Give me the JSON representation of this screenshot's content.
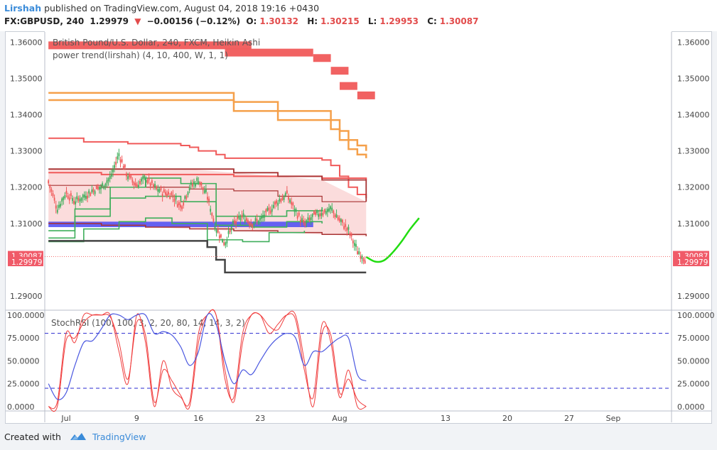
{
  "header": {
    "author": "Lirshah",
    "published_text": "published on TradingView.com, August 04, 2018 19:16 +0430",
    "symbol": "FX:GBPUSD, 240",
    "last": "1.29979",
    "change_arrow": "▼",
    "change": "−0.00156 (−0.12%)",
    "open_label": "O:",
    "open": "1.30132",
    "high_label": "H:",
    "high": "1.30215",
    "low_label": "L:",
    "low": "1.29953",
    "close_label": "C:",
    "close": "1.30087"
  },
  "footer": {
    "created_with": "Created with",
    "brand": "TradingView"
  },
  "colors": {
    "bull": "#3fae5b",
    "bear": "#f05a5a",
    "orange": "#f5a04a",
    "blue_band": "#4a4af5",
    "dark_line": "#444444",
    "dark_red": "#a83232",
    "stoch_blue": "#4a57e0",
    "stoch_red": "#f03c3c",
    "forecast": "#22dd11",
    "price_tag": "#f05a68",
    "dashed": "#2a2ad0"
  },
  "chart_data": [
    {
      "type": "line",
      "title": "British Pound/U.S. Dollar, 240, FXCM, Heikin Ashi",
      "subtitle": "power trend(lirshah) (4, 10, 400, W, 1, 1)",
      "y_ticks": [
        "1.36000",
        "1.35000",
        "1.34000",
        "1.33000",
        "1.32000",
        "1.31000",
        "1.29000"
      ],
      "ylim": [
        1.2865,
        1.3624
      ],
      "x_ticks": [
        {
          "label": "Jul",
          "day": 1
        },
        {
          "label": "9",
          "day": 9
        },
        {
          "label": "16",
          "day": 16
        },
        {
          "label": "23",
          "day": 23
        },
        {
          "label": "Aug",
          "day": 32
        },
        {
          "label": "13",
          "day": 44
        },
        {
          "label": "20",
          "day": 51
        },
        {
          "label": "27",
          "day": 58
        },
        {
          "label": "Sep",
          "day": 63
        }
      ],
      "price_tags": [
        {
          "label": "1.30087",
          "value": 1.30087
        },
        {
          "label": "1.29979",
          "value": 1.29979
        }
      ],
      "series": [
        {
          "role": "ha_close",
          "x": [
            -1,
            0,
            1,
            2,
            3,
            4,
            5,
            6,
            7,
            8,
            9,
            10,
            11,
            12,
            13,
            14,
            15,
            16,
            17,
            18,
            19,
            20,
            21,
            22,
            23,
            24,
            25,
            26,
            27,
            28,
            29,
            30,
            31,
            32,
            33,
            34,
            35
          ],
          "values": [
            1.3215,
            1.314,
            1.3185,
            1.316,
            1.3175,
            1.319,
            1.32,
            1.3225,
            1.329,
            1.323,
            1.3205,
            1.3225,
            1.32,
            1.3185,
            1.318,
            1.3145,
            1.32,
            1.322,
            1.3175,
            1.3085,
            1.3045,
            1.31,
            1.312,
            1.31,
            1.311,
            1.3135,
            1.316,
            1.318,
            1.3135,
            1.3095,
            1.312,
            1.313,
            1.314,
            1.311,
            1.308,
            1.3025,
            1.3
          ]
        },
        {
          "role": "orange_upper",
          "x": [
            -1,
            0,
            5,
            10,
            15,
            20,
            25,
            30,
            31,
            32,
            33,
            34,
            35
          ],
          "values": [
            1.346,
            1.346,
            1.346,
            1.346,
            1.346,
            1.3435,
            1.341,
            1.341,
            1.3385,
            1.3355,
            1.333,
            1.3315,
            1.33
          ]
        },
        {
          "role": "orange_lower",
          "x": [
            -1,
            0,
            5,
            10,
            15,
            20,
            25,
            30,
            31,
            32,
            33,
            34,
            35
          ],
          "values": [
            1.344,
            1.344,
            1.344,
            1.344,
            1.344,
            1.341,
            1.3385,
            1.3385,
            1.336,
            1.333,
            1.3305,
            1.329,
            1.328
          ]
        },
        {
          "role": "red_upper",
          "x": [
            -1,
            3,
            8,
            14,
            15,
            16,
            17,
            18,
            19,
            25,
            30,
            31,
            32,
            33,
            34,
            35
          ],
          "values": [
            1.3335,
            1.3325,
            1.332,
            1.3315,
            1.331,
            1.33,
            1.33,
            1.329,
            1.328,
            1.328,
            1.3275,
            1.326,
            1.323,
            1.32,
            1.318,
            1.317
          ]
        },
        {
          "role": "red_mid",
          "x": [
            -1,
            5,
            10,
            15,
            20,
            25,
            30,
            35
          ],
          "values": [
            1.324,
            1.3235,
            1.3235,
            1.3235,
            1.323,
            1.323,
            1.3225,
            1.322
          ]
        },
        {
          "role": "dark_red_1",
          "x": [
            -1,
            5,
            10,
            15,
            20,
            25,
            30,
            35
          ],
          "values": [
            1.325,
            1.325,
            1.325,
            1.325,
            1.324,
            1.323,
            1.322,
            1.316
          ]
        },
        {
          "role": "dark_red_2",
          "x": [
            -1,
            5,
            10,
            15,
            20,
            25,
            30,
            35
          ],
          "values": [
            1.3205,
            1.32,
            1.32,
            1.3195,
            1.319,
            1.3175,
            1.316,
            1.316
          ]
        },
        {
          "role": "dark_red_3",
          "x": [
            -1,
            5,
            10,
            15,
            20,
            25,
            30,
            35
          ],
          "values": [
            1.31,
            1.3095,
            1.309,
            1.3085,
            1.308,
            1.3075,
            1.307,
            1.3065
          ]
        },
        {
          "role": "green_1",
          "x": [
            -1,
            2,
            6,
            10,
            14,
            18,
            22,
            26,
            30
          ],
          "values": [
            1.308,
            1.314,
            1.32,
            1.3225,
            1.321,
            1.312,
            1.312,
            1.3135,
            1.3145
          ]
        },
        {
          "role": "green_2",
          "x": [
            -1,
            2,
            6,
            10,
            14,
            18,
            22,
            26,
            30
          ],
          "values": [
            1.306,
            1.312,
            1.317,
            1.3175,
            1.316,
            1.3095,
            1.309,
            1.3105,
            1.31
          ]
        },
        {
          "role": "green_3",
          "x": [
            -1,
            3,
            7,
            10,
            13,
            17,
            21,
            24,
            28
          ],
          "values": [
            1.305,
            1.3085,
            1.3105,
            1.3115,
            1.31,
            1.3055,
            1.305,
            1.3075,
            1.308
          ]
        },
        {
          "role": "dark_support",
          "x": [
            -1,
            5,
            10,
            15,
            17,
            18,
            19,
            20,
            25,
            30,
            35
          ],
          "values": [
            1.3052,
            1.3052,
            1.3052,
            1.3052,
            1.3035,
            1.3,
            1.2965,
            1.2965,
            1.2965,
            1.2965,
            1.2965
          ]
        },
        {
          "role": "forecast",
          "x": [
            35,
            36,
            37,
            38,
            39,
            40,
            41
          ],
          "values": [
            1.3008,
            1.2995,
            1.2998,
            1.302,
            1.305,
            1.3085,
            1.3115
          ]
        }
      ],
      "blue_band": {
        "x": [
          -1,
          29
        ],
        "values": [
          1.309,
          1.3105
        ]
      },
      "top_blocks": [
        {
          "x": [
            -1,
            22
          ],
          "value": 1.359
        },
        {
          "x": [
            19,
            29
          ],
          "value": 1.357
        },
        {
          "x": [
            29,
            31
          ],
          "value": 1.3555
        },
        {
          "x": [
            31,
            33
          ],
          "value": 1.352
        },
        {
          "x": [
            32,
            34
          ],
          "value": 1.3478
        },
        {
          "x": [
            34,
            36
          ],
          "value": 1.3452
        }
      ]
    },
    {
      "type": "line",
      "title": "StochRSI (100, 100, 3, 2, 20, 80, 14, 14, 3, 2)",
      "y_ticks": [
        "100.0000",
        "75.0000",
        "50.0000",
        "25.0000",
        "0.0000"
      ],
      "ylim": [
        -4,
        103
      ],
      "reference_lines": [
        80,
        20
      ],
      "series": [
        {
          "role": "stoch_blue",
          "x": [
            -1,
            0,
            1,
            2,
            3,
            4,
            5,
            6,
            7,
            8,
            9,
            10,
            11,
            12,
            13,
            14,
            15,
            16,
            17,
            18,
            19,
            20,
            21,
            22,
            23,
            24,
            25,
            26,
            27,
            28,
            29,
            30,
            31,
            32,
            33,
            34,
            35
          ],
          "values": [
            25,
            8,
            15,
            45,
            70,
            72,
            85,
            100,
            100,
            95,
            100,
            100,
            80,
            82,
            78,
            65,
            45,
            60,
            100,
            90,
            50,
            25,
            40,
            35,
            50,
            65,
            75,
            80,
            75,
            45,
            60,
            60,
            68,
            75,
            75,
            35,
            28
          ]
        },
        {
          "role": "stoch_red_a",
          "x": [
            -1,
            0,
            1,
            2,
            3,
            4,
            5,
            6,
            7,
            8,
            9,
            10,
            11,
            12,
            13,
            14,
            15,
            16,
            17,
            18,
            19,
            20,
            21,
            22,
            23,
            24,
            25,
            26,
            27,
            28,
            29,
            30,
            31,
            32,
            33,
            34,
            35
          ],
          "values": [
            0,
            5,
            80,
            70,
            100,
            100,
            100,
            100,
            60,
            25,
            100,
            70,
            0,
            50,
            20,
            10,
            5,
            80,
            100,
            100,
            30,
            10,
            80,
            100,
            100,
            80,
            90,
            100,
            95,
            40,
            10,
            90,
            70,
            10,
            40,
            0,
            0
          ]
        },
        {
          "role": "stoch_red_b",
          "x": [
            -1,
            0,
            1,
            2,
            3,
            4,
            5,
            6,
            7,
            8,
            9,
            10,
            11,
            12,
            13,
            14,
            15,
            16,
            17,
            18,
            19,
            20,
            21,
            22,
            23,
            24,
            25,
            26,
            27,
            28,
            29,
            30,
            31,
            32,
            33,
            34,
            35
          ],
          "values": [
            0,
            0,
            72,
            75,
            92,
            100,
            100,
            98,
            70,
            30,
            92,
            78,
            5,
            40,
            28,
            12,
            0,
            70,
            100,
            100,
            40,
            5,
            70,
            100,
            100,
            88,
            84,
            100,
            100,
            50,
            0,
            80,
            78,
            15,
            30,
            8,
            0
          ]
        }
      ]
    }
  ]
}
